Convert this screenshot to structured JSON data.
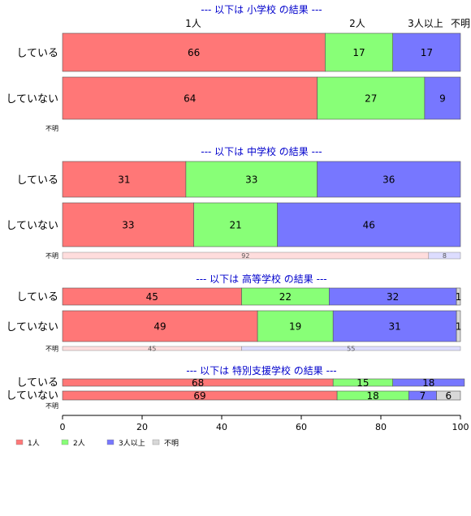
{
  "chart_data": {
    "type": "bar",
    "orientation": "horizontal",
    "stacked": true,
    "xlim": [
      0,
      100
    ],
    "x_ticks": [
      "0",
      "20",
      "40",
      "60",
      "80",
      "100"
    ],
    "series_names": [
      "1人",
      "2人",
      "3人以上",
      "不明"
    ],
    "colors": [
      "#ff7777",
      "#88ff77",
      "#7777ff",
      "#d8d8d8"
    ],
    "na_colors": [
      "#ffdddd",
      "#ddddff"
    ],
    "column_headers": [
      "1人",
      "2人",
      "3人以上",
      "不明"
    ],
    "panels": [
      {
        "title": "--- 以下は 小学校 の結果 ---",
        "rows": [
          {
            "label": "している",
            "values": [
              66,
              17,
              17,
              0
            ]
          },
          {
            "label": "していない",
            "values": [
              64,
              27,
              9,
              0
            ]
          }
        ],
        "na_row": {
          "label": "不明",
          "values": []
        }
      },
      {
        "title": "--- 以下は 中学校 の結果 ---",
        "rows": [
          {
            "label": "している",
            "values": [
              31,
              33,
              36,
              0
            ]
          },
          {
            "label": "していない",
            "values": [
              33,
              21,
              46,
              0
            ]
          }
        ],
        "na_row": {
          "label": "不明",
          "values": [
            92,
            8
          ]
        }
      },
      {
        "title": "--- 以下は 高等学校 の結果 ---",
        "rows": [
          {
            "label": "している",
            "values": [
              45,
              22,
              32,
              1
            ]
          },
          {
            "label": "していない",
            "values": [
              49,
              19,
              31,
              1
            ]
          }
        ],
        "na_row": {
          "label": "不明",
          "values": [
            45,
            55
          ]
        }
      },
      {
        "title": "--- 以下は 特別支援学校 の結果 ---",
        "rows": [
          {
            "label": "している",
            "values": [
              68,
              15,
              18,
              0
            ]
          },
          {
            "label": "していない",
            "values": [
              69,
              18,
              7,
              6
            ]
          }
        ],
        "na_row": {
          "label": "不明",
          "values": []
        }
      }
    ]
  }
}
